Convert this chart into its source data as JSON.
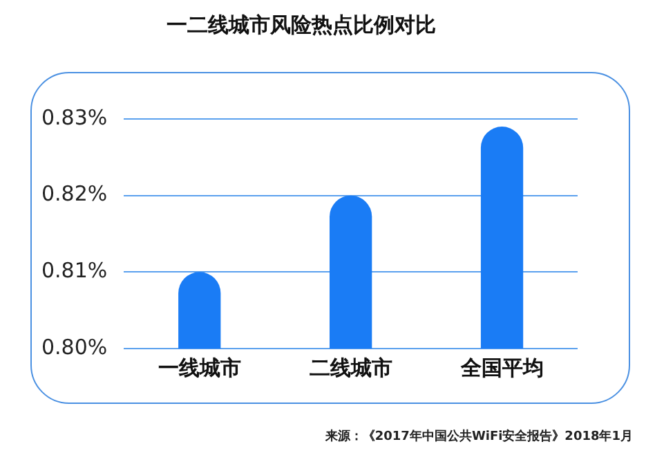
{
  "chart_data": {
    "type": "bar",
    "title": "一二线城市风险热点比例对比",
    "categories": [
      "一线城市",
      "二线城市",
      "全国平均"
    ],
    "values": [
      0.81,
      0.82,
      0.829
    ],
    "color": "#1a7cf5",
    "ylim": [
      0.8,
      0.83
    ],
    "yticks": [
      {
        "value": 0.8,
        "label": "0.80%"
      },
      {
        "value": 0.81,
        "label": "0.81%"
      },
      {
        "value": 0.82,
        "label": "0.82%"
      },
      {
        "value": 0.83,
        "label": "0.83%"
      }
    ],
    "grid": "y",
    "legend": false,
    "annotations": [
      "来源：《2017年中国公共WiFi安全报告》2018年1月"
    ]
  }
}
